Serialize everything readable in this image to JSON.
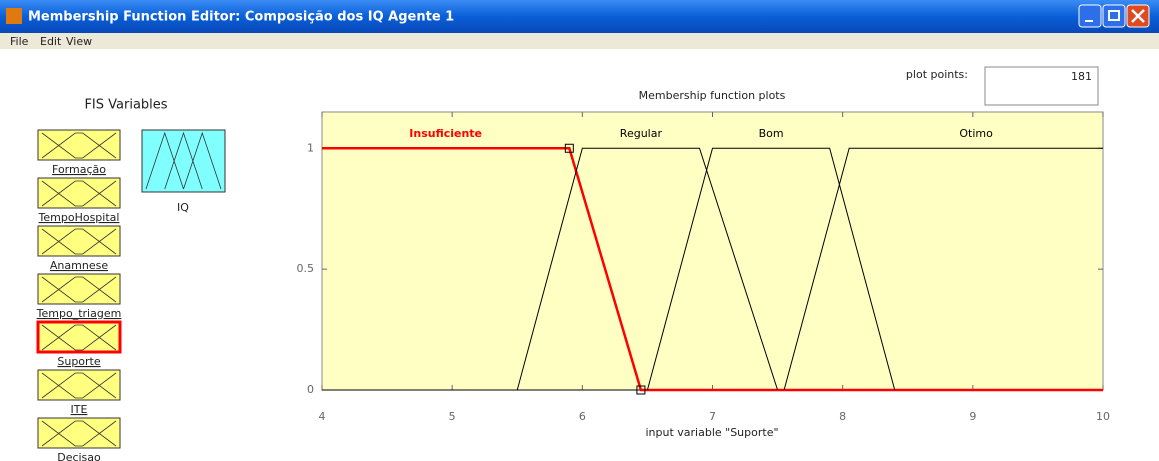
{
  "window": {
    "title": "Membership Function Editor: Composição dos IQ Agente 1",
    "menu": [
      "File",
      "Edit",
      "View"
    ]
  },
  "fis_variables": {
    "title": "FIS Variables",
    "inputs": [
      "Formação",
      "TempoHospital",
      "Anamnese",
      "Tempo_triagem",
      "Suporte",
      "ITE",
      "Decisao"
    ],
    "outputs": [
      "IQ"
    ]
  },
  "plot_points": {
    "label": "plot points:",
    "value": "181"
  },
  "chart_data": {
    "type": "line",
    "title": "Membership function plots",
    "xlabel": "input variable \"Suporte\"",
    "xlim": [
      4,
      10
    ],
    "ylim": [
      0,
      1.15
    ],
    "xticks": [
      4,
      5,
      6,
      7,
      8,
      9,
      10
    ],
    "yticks": [
      0,
      0.5,
      1
    ],
    "series": [
      {
        "name": "Insuficiente",
        "color": "#ff0000",
        "x": [
          4,
          5.9,
          6.45,
          10
        ],
        "values": [
          1,
          1,
          0,
          0
        ]
      },
      {
        "name": "Regular",
        "color": "#000000",
        "x": [
          5.5,
          6,
          6.9,
          7.5
        ],
        "values": [
          0,
          1,
          1,
          0
        ]
      },
      {
        "name": "Bom",
        "color": "#000000",
        "x": [
          6.5,
          7,
          7.9,
          8.4
        ],
        "values": [
          0,
          1,
          1,
          0
        ]
      },
      {
        "name": "Otimo",
        "color": "#000000",
        "x": [
          7.55,
          8.05,
          10
        ],
        "values": [
          0,
          1,
          1
        ]
      }
    ]
  }
}
